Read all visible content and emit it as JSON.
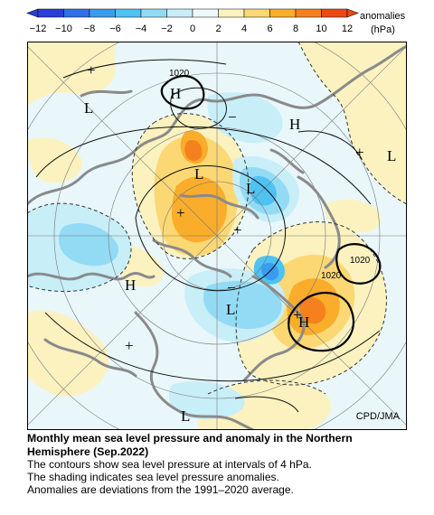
{
  "legend": {
    "ticks": [
      "−12",
      "−10",
      "−8",
      "−6",
      "−4",
      "−2",
      "0",
      "2",
      "4",
      "6",
      "8",
      "10",
      "12"
    ],
    "unit_line1": "anomalies",
    "unit_line2": "(hPa)",
    "colors": [
      "#2a3fd6",
      "#2f6fe8",
      "#3a9cf0",
      "#4fc2f2",
      "#93dbf4",
      "#c8eef8",
      "#eef9fb",
      "#fbf2c0",
      "#fbd874",
      "#f9ad2a",
      "#f5811e",
      "#ec4a12"
    ]
  },
  "map": {
    "centers": [
      {
        "kind": "H",
        "label": "H"
      },
      {
        "kind": "L",
        "label": "L"
      },
      {
        "kind": "H",
        "label": "H"
      },
      {
        "kind": "L",
        "label": "L"
      },
      {
        "kind": "L",
        "label": "L"
      },
      {
        "kind": "L",
        "label": "L"
      },
      {
        "kind": "H",
        "label": "H"
      },
      {
        "kind": "L",
        "label": "L"
      },
      {
        "kind": "H",
        "label": "H"
      },
      {
        "kind": "L",
        "label": "L"
      }
    ],
    "isobar_labels": [
      "1020",
      "1020",
      "1020"
    ],
    "anomaly_signs": [
      "+",
      "+",
      "+",
      "+",
      "+",
      "+",
      "−",
      "−"
    ],
    "credit": "CPD/JMA"
  },
  "caption": {
    "title_line1": "Monthly mean sea level pressure and anomaly in the Northern",
    "title_line2": "Hemisphere (Sep.2022)",
    "line1": "The contours show sea level pressure at intervals of 4 hPa.",
    "line2": "The shading indicates sea level pressure anomalies.",
    "line3": "Anomalies are deviations from the 1991–2020 average."
  }
}
